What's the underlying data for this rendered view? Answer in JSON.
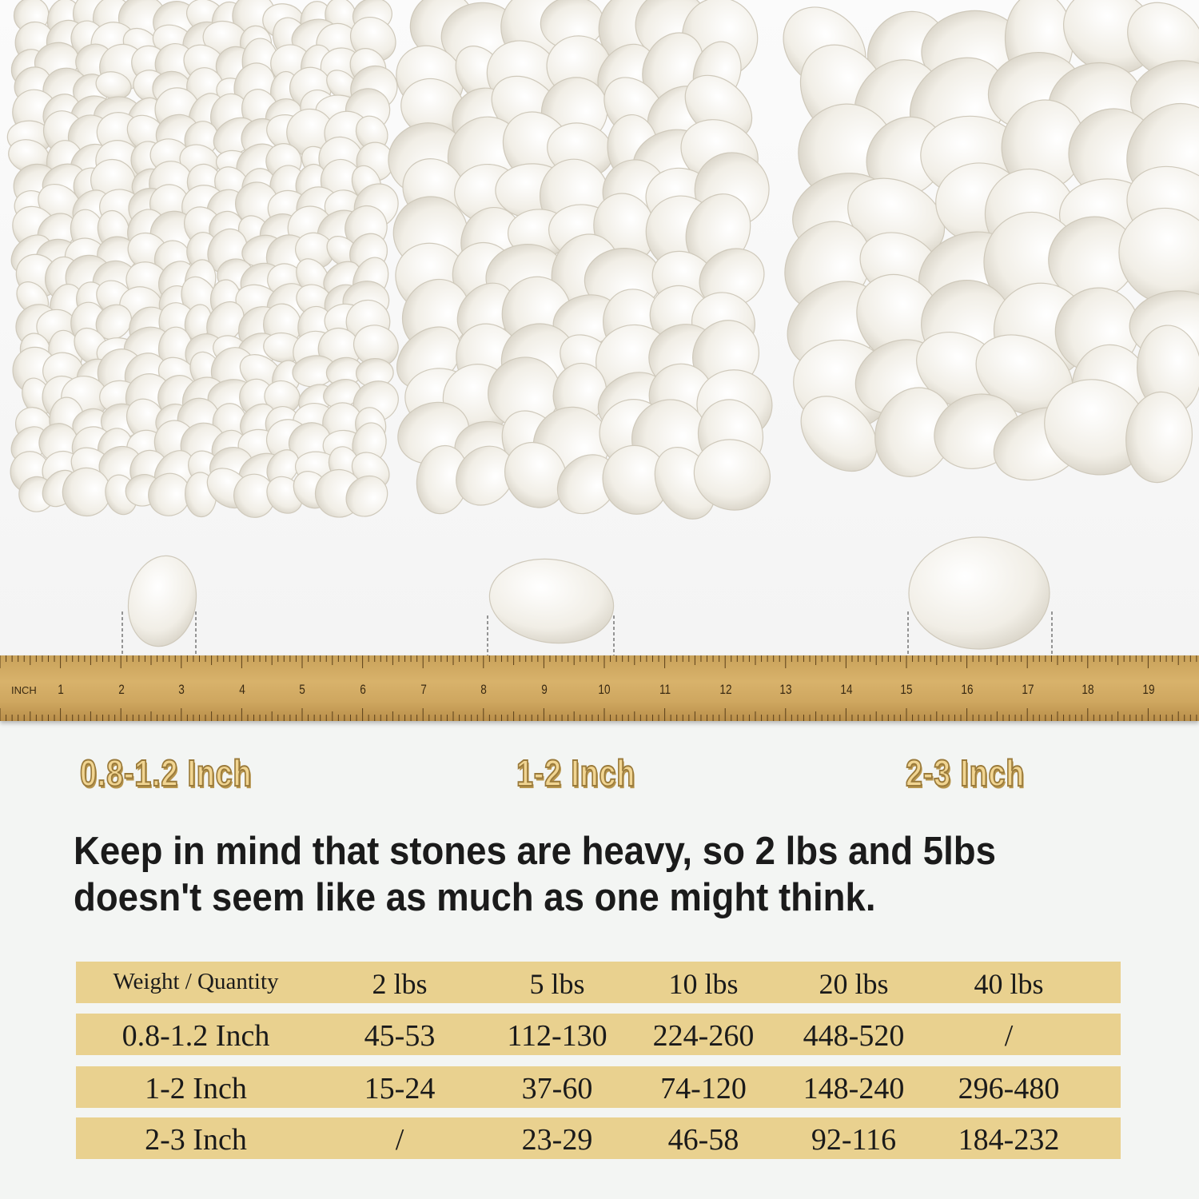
{
  "ruler": {
    "unit_label": "INCH",
    "numbers": [
      "1",
      "2",
      "3",
      "4",
      "5",
      "6",
      "7",
      "8",
      "9",
      "10",
      "11",
      "12",
      "13",
      "14",
      "15",
      "16",
      "17",
      "18",
      "19"
    ]
  },
  "size_labels": [
    "0.8-1.2 Inch",
    "1-2 Inch",
    "2-3 Inch"
  ],
  "note": "Keep in mind that stones are heavy, so 2 lbs and 5lbs doesn't seem like as much as one might think.",
  "table": {
    "headers": [
      "Weight / Quantity",
      "2 lbs",
      "5 lbs",
      "10 lbs",
      "20 lbs",
      "40 lbs"
    ],
    "rows": [
      [
        "0.8-1.2 Inch",
        "45-53",
        "112-130",
        "224-260",
        "448-520",
        "/"
      ],
      [
        "1-2 Inch",
        "15-24",
        "37-60",
        "74-120",
        "148-240",
        "296-480"
      ],
      [
        "2-3 Inch",
        "/",
        "23-29",
        "46-58",
        "92-116",
        "184-232"
      ]
    ]
  },
  "colors": {
    "table_row": "#e9d18f",
    "label_gold": "#f1d592",
    "ruler": "#d2aa63",
    "pebble": "#f6f3ec"
  }
}
